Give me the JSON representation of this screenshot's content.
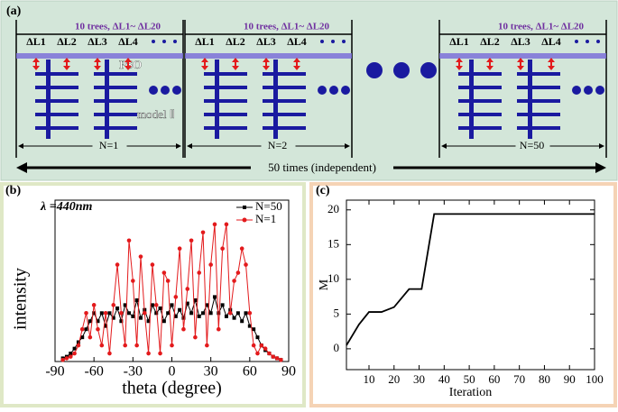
{
  "panel_a": {
    "label": "(a)",
    "groups": [
      {
        "header": "10 trees, ΔL1~ ΔL20",
        "delta_labels": [
          "ΔL1",
          "ΔL2",
          "ΔL3",
          "ΔL4"
        ],
        "run": "N=1"
      },
      {
        "header": "10 trees, ΔL1~ ΔL20",
        "delta_labels": [
          "ΔL1",
          "ΔL2",
          "ΔL3",
          "ΔL4"
        ],
        "run": "N=2"
      },
      {
        "header": "10 trees, ΔL1~ ΔL20",
        "delta_labels": [
          "ΔL1",
          "ΔL2",
          "ΔL3",
          "ΔL4"
        ],
        "run": "N=50"
      }
    ],
    "pso": "PSO",
    "model": "model Ⅱ",
    "footer": "50 times (independent)"
  },
  "chart_data": [
    {
      "type": "line",
      "panel_label": "(b)",
      "annotation": "λ =440nm",
      "x_label": "theta (degree)",
      "y_label": "intensity",
      "x": [
        -84,
        -81,
        -78,
        -75,
        -72,
        -69,
        -66,
        -63,
        -60,
        -57,
        -54,
        -51,
        -48,
        -45,
        -42,
        -39,
        -36,
        -33,
        -30,
        -27,
        -24,
        -21,
        -18,
        -15,
        -12,
        -9,
        -6,
        -3,
        0,
        3,
        6,
        9,
        12,
        15,
        18,
        21,
        24,
        27,
        30,
        33,
        36,
        39,
        42,
        45,
        48,
        51,
        54,
        57,
        60,
        63,
        66,
        69,
        72,
        75,
        78,
        81,
        84
      ],
      "series": [
        {
          "name": "N=50",
          "color": "#000000",
          "marker": "square",
          "values": [
            0.02,
            0.03,
            0.05,
            0.08,
            0.12,
            0.15,
            0.2,
            0.25,
            0.3,
            0.25,
            0.3,
            0.22,
            0.3,
            0.27,
            0.33,
            0.25,
            0.35,
            0.3,
            0.28,
            0.38,
            0.27,
            0.32,
            0.25,
            0.35,
            0.3,
            0.33,
            0.25,
            0.3,
            0.35,
            0.28,
            0.32,
            0.27,
            0.36,
            0.3,
            0.38,
            0.28,
            0.3,
            0.35,
            0.3,
            0.4,
            0.3,
            0.35,
            0.28,
            0.32,
            0.27,
            0.3,
            0.25,
            0.3,
            0.22,
            0.2,
            0.15,
            0.1,
            0.07,
            0.05,
            0.03,
            0.02,
            0.01
          ]
        },
        {
          "name": "N=1",
          "color": "#e31a1c",
          "marker": "circle",
          "values": [
            0.01,
            0.02,
            0.03,
            0.05,
            0.1,
            0.2,
            0.3,
            0.15,
            0.35,
            0.2,
            0.1,
            0.3,
            0.05,
            0.35,
            0.6,
            0.3,
            0.1,
            0.75,
            0.5,
            0.1,
            0.65,
            0.3,
            0.05,
            0.6,
            0.35,
            0.05,
            0.55,
            0.5,
            0.1,
            0.4,
            0.7,
            0.2,
            0.45,
            0.75,
            0.15,
            0.55,
            0.8,
            0.1,
            0.6,
            0.85,
            0.2,
            0.7,
            0.85,
            0.3,
            0.5,
            0.55,
            0.7,
            0.6,
            0.3,
            0.1,
            0.05,
            0.1,
            0.08,
            0.05,
            0.03,
            0.02,
            0.01
          ]
        }
      ],
      "xlim": [
        -90,
        90
      ],
      "xticks": [
        -90,
        -60,
        -30,
        0,
        30,
        60,
        90
      ],
      "ylim": [
        0,
        1
      ],
      "legend": "upper right"
    },
    {
      "type": "line",
      "panel_label": "(c)",
      "x_label": "Iteration",
      "y_label": "M",
      "x": [
        1,
        6,
        10,
        15,
        20,
        26,
        31,
        36,
        100
      ],
      "series": [
        {
          "color": "#000000",
          "values": [
            0.5,
            3.5,
            5.3,
            5.3,
            6,
            8.6,
            8.6,
            19.4,
            19.4
          ]
        }
      ],
      "xlim": [
        1,
        100
      ],
      "xticks": [
        10,
        20,
        30,
        40,
        50,
        60,
        70,
        80,
        90,
        100
      ],
      "ylim": [
        -3,
        21.4
      ],
      "yticks": [
        0,
        5,
        10,
        15,
        20
      ]
    }
  ]
}
